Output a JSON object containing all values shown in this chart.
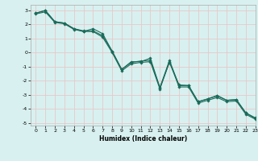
{
  "title": "",
  "xlabel": "Humidex (Indice chaleur)",
  "xlim": [
    -0.5,
    23
  ],
  "ylim": [
    -5.2,
    3.4
  ],
  "yticks": [
    -5,
    -4,
    -3,
    -2,
    -1,
    0,
    1,
    2,
    3
  ],
  "xticks": [
    0,
    1,
    2,
    3,
    4,
    5,
    6,
    7,
    8,
    9,
    10,
    11,
    12,
    13,
    14,
    15,
    16,
    17,
    18,
    19,
    20,
    21,
    22,
    23
  ],
  "bg_color": "#d8f0f0",
  "grid_color": "#e8c8c8",
  "line_color": "#1a6b5a",
  "line1_y": [
    2.8,
    3.0,
    2.2,
    2.1,
    1.7,
    1.5,
    1.7,
    1.35,
    0.1,
    -1.2,
    -0.65,
    -0.65,
    -0.4,
    -2.5,
    -0.7,
    -2.3,
    -2.35,
    -3.5,
    -3.3,
    -3.05,
    -3.4,
    -3.35,
    -4.3,
    -4.65
  ],
  "line2_y": [
    2.8,
    3.0,
    2.2,
    2.1,
    1.7,
    1.55,
    1.55,
    1.2,
    0.1,
    -1.2,
    -0.7,
    -0.6,
    -0.55,
    -2.5,
    -0.55,
    -2.35,
    -2.35,
    -3.5,
    -3.3,
    -3.1,
    -3.4,
    -3.35,
    -4.3,
    -4.7
  ],
  "line3_y": [
    2.75,
    2.9,
    2.15,
    2.05,
    1.65,
    1.5,
    1.5,
    1.1,
    0.0,
    -1.3,
    -0.8,
    -0.7,
    -0.65,
    -2.6,
    -0.65,
    -2.45,
    -2.45,
    -3.6,
    -3.4,
    -3.2,
    -3.5,
    -3.45,
    -4.4,
    -4.75
  ]
}
